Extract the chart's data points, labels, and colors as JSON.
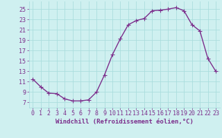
{
  "x": [
    0,
    1,
    2,
    3,
    4,
    5,
    6,
    7,
    8,
    9,
    10,
    11,
    12,
    13,
    14,
    15,
    16,
    17,
    18,
    19,
    20,
    21,
    22,
    23
  ],
  "y": [
    11.5,
    10.0,
    8.8,
    8.7,
    7.7,
    7.3,
    7.3,
    7.5,
    9.0,
    12.3,
    16.2,
    19.3,
    22.0,
    22.8,
    23.2,
    24.7,
    24.8,
    25.0,
    25.3,
    24.7,
    22.0,
    20.8,
    15.5,
    13.0
  ],
  "line_color": "#7B2D8B",
  "marker": "+",
  "marker_size": 4,
  "line_width": 1.0,
  "bg_color": "#cff0f0",
  "grid_color": "#aadddd",
  "xlabel": "Windchill (Refroidissement éolien,°C)",
  "xlabel_color": "#7B2D8B",
  "xlabel_fontsize": 6.5,
  "tick_color": "#7B2D8B",
  "tick_fontsize": 6.0,
  "ytick_labels": [
    "7",
    "9",
    "11",
    "13",
    "15",
    "17",
    "19",
    "21",
    "23",
    "25"
  ],
  "ytick_values": [
    7,
    9,
    11,
    13,
    15,
    17,
    19,
    21,
    23,
    25
  ],
  "ylim": [
    6.0,
    26.5
  ],
  "xlim": [
    -0.5,
    23.5
  ]
}
